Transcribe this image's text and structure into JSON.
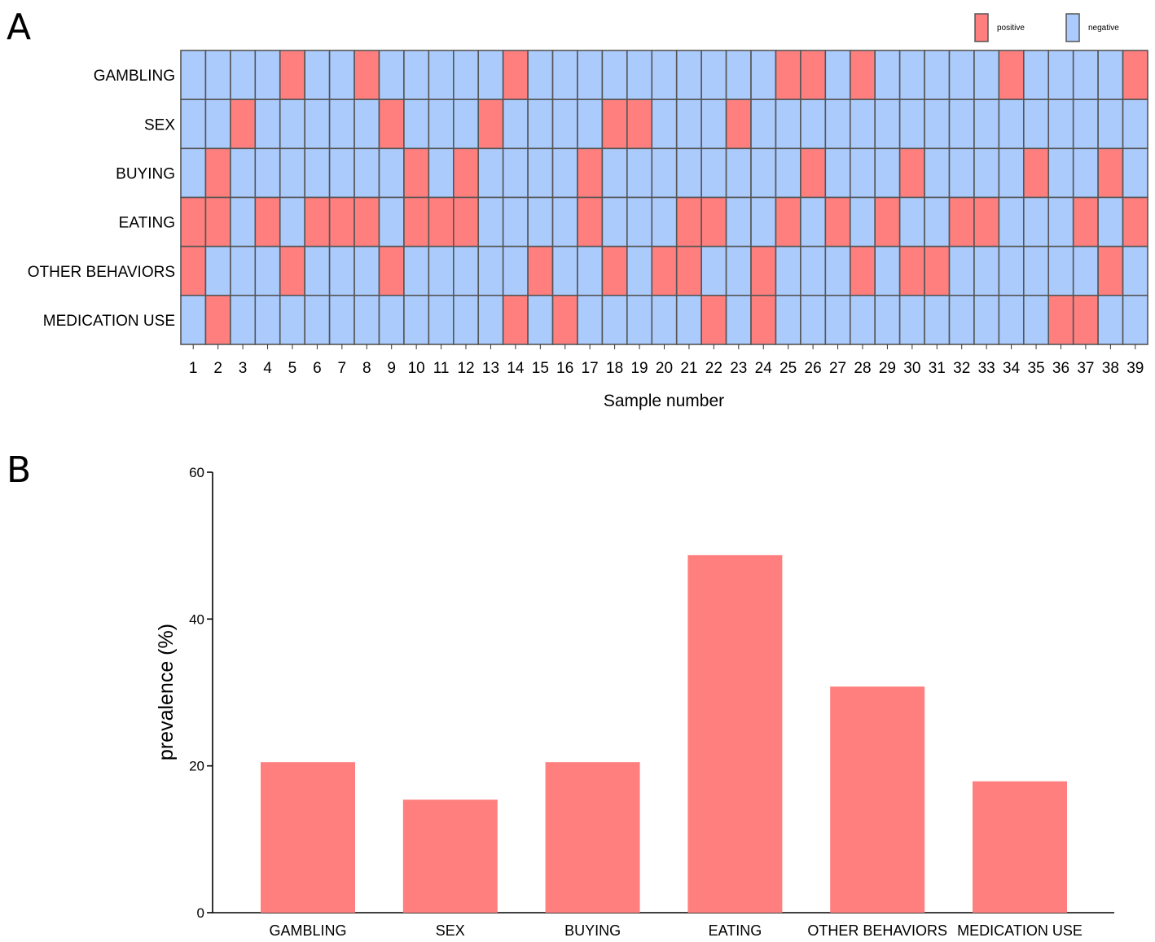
{
  "colors": {
    "positive": "#ff7f7f",
    "negative": "#abcbfd",
    "grid": "#555555",
    "bar": "#ff7f7f"
  },
  "chart_data": [
    {
      "panel": "A",
      "type": "heatmap",
      "title": "",
      "xlabel": "Sample number",
      "ylabel": "",
      "rows": [
        "GAMBLING",
        "SEX",
        "BUYING",
        "EATING",
        "OTHER BEHAVIORS",
        "MEDICATION USE"
      ],
      "columns": [
        "1",
        "2",
        "3",
        "4",
        "5",
        "6",
        "7",
        "8",
        "9",
        "10",
        "11",
        "12",
        "13",
        "14",
        "15",
        "16",
        "17",
        "18",
        "19",
        "20",
        "21",
        "22",
        "23",
        "24",
        "25",
        "26",
        "27",
        "28",
        "29",
        "30",
        "31",
        "32",
        "33",
        "34",
        "35",
        "36",
        "37",
        "38",
        "39"
      ],
      "legend": [
        {
          "label": "positive",
          "value": 1
        },
        {
          "label": "negative",
          "value": 0
        }
      ],
      "legend_position": "top-right",
      "matrix": [
        [
          0,
          0,
          0,
          0,
          1,
          0,
          0,
          1,
          0,
          0,
          0,
          0,
          0,
          1,
          0,
          0,
          0,
          0,
          0,
          0,
          0,
          0,
          0,
          0,
          1,
          1,
          0,
          1,
          0,
          0,
          0,
          0,
          0,
          1,
          0,
          0,
          0,
          0,
          1
        ],
        [
          0,
          0,
          1,
          0,
          0,
          0,
          0,
          0,
          1,
          0,
          0,
          0,
          1,
          0,
          0,
          0,
          0,
          1,
          1,
          0,
          0,
          0,
          1,
          0,
          0,
          0,
          0,
          0,
          0,
          0,
          0,
          0,
          0,
          0,
          0,
          0,
          0,
          0,
          0
        ],
        [
          0,
          1,
          0,
          0,
          0,
          0,
          0,
          0,
          0,
          1,
          0,
          1,
          0,
          0,
          0,
          0,
          1,
          0,
          0,
          0,
          0,
          0,
          0,
          0,
          0,
          1,
          0,
          0,
          0,
          1,
          0,
          0,
          0,
          0,
          1,
          0,
          0,
          1,
          0
        ],
        [
          1,
          1,
          0,
          1,
          0,
          1,
          1,
          1,
          0,
          1,
          1,
          1,
          0,
          0,
          0,
          0,
          1,
          0,
          0,
          0,
          1,
          1,
          0,
          0,
          1,
          0,
          1,
          0,
          1,
          0,
          0,
          1,
          1,
          0,
          0,
          0,
          1,
          0,
          1
        ],
        [
          1,
          0,
          0,
          0,
          1,
          0,
          0,
          0,
          1,
          0,
          0,
          0,
          0,
          0,
          1,
          0,
          0,
          1,
          0,
          1,
          1,
          0,
          0,
          1,
          0,
          0,
          0,
          1,
          0,
          1,
          1,
          0,
          0,
          0,
          0,
          0,
          0,
          1,
          0
        ],
        [
          0,
          1,
          0,
          0,
          0,
          0,
          0,
          0,
          0,
          0,
          0,
          0,
          0,
          1,
          0,
          1,
          0,
          0,
          0,
          0,
          0,
          1,
          0,
          1,
          0,
          0,
          0,
          0,
          0,
          0,
          0,
          0,
          0,
          0,
          0,
          1,
          1,
          0,
          0
        ]
      ]
    },
    {
      "panel": "B",
      "type": "bar",
      "title": "",
      "xlabel": "",
      "ylabel": "prevalence (%)",
      "ylim": [
        0,
        60
      ],
      "yticks": [
        0,
        20,
        40,
        60
      ],
      "grid": false,
      "categories": [
        "GAMBLING",
        "SEX",
        "BUYING",
        "EATING",
        "OTHER BEHAVIORS",
        "MEDICATION USE"
      ],
      "values": [
        20.5,
        15.4,
        20.5,
        48.7,
        30.8,
        17.9
      ]
    }
  ]
}
